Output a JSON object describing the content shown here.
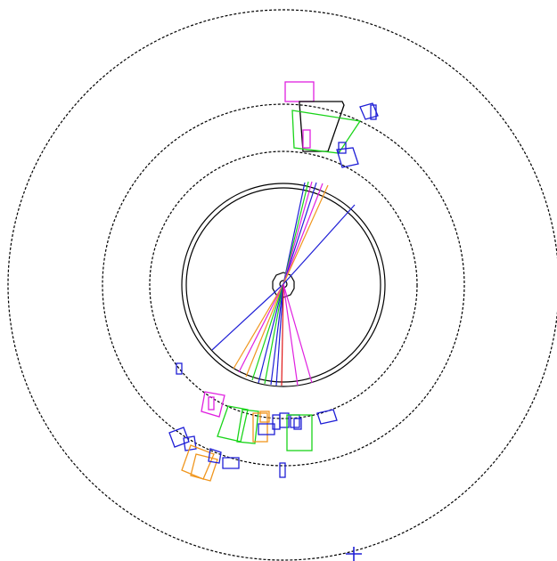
{
  "colors": {
    "black": "#000000",
    "blue": "#1f1fd6",
    "green": "#19d419",
    "magenta": "#e020e0",
    "orange": "#f0961e",
    "red": "#e01818",
    "grey": "#666666"
  },
  "icons": {
    "cross_marker": "cross-marker-icon"
  }
}
